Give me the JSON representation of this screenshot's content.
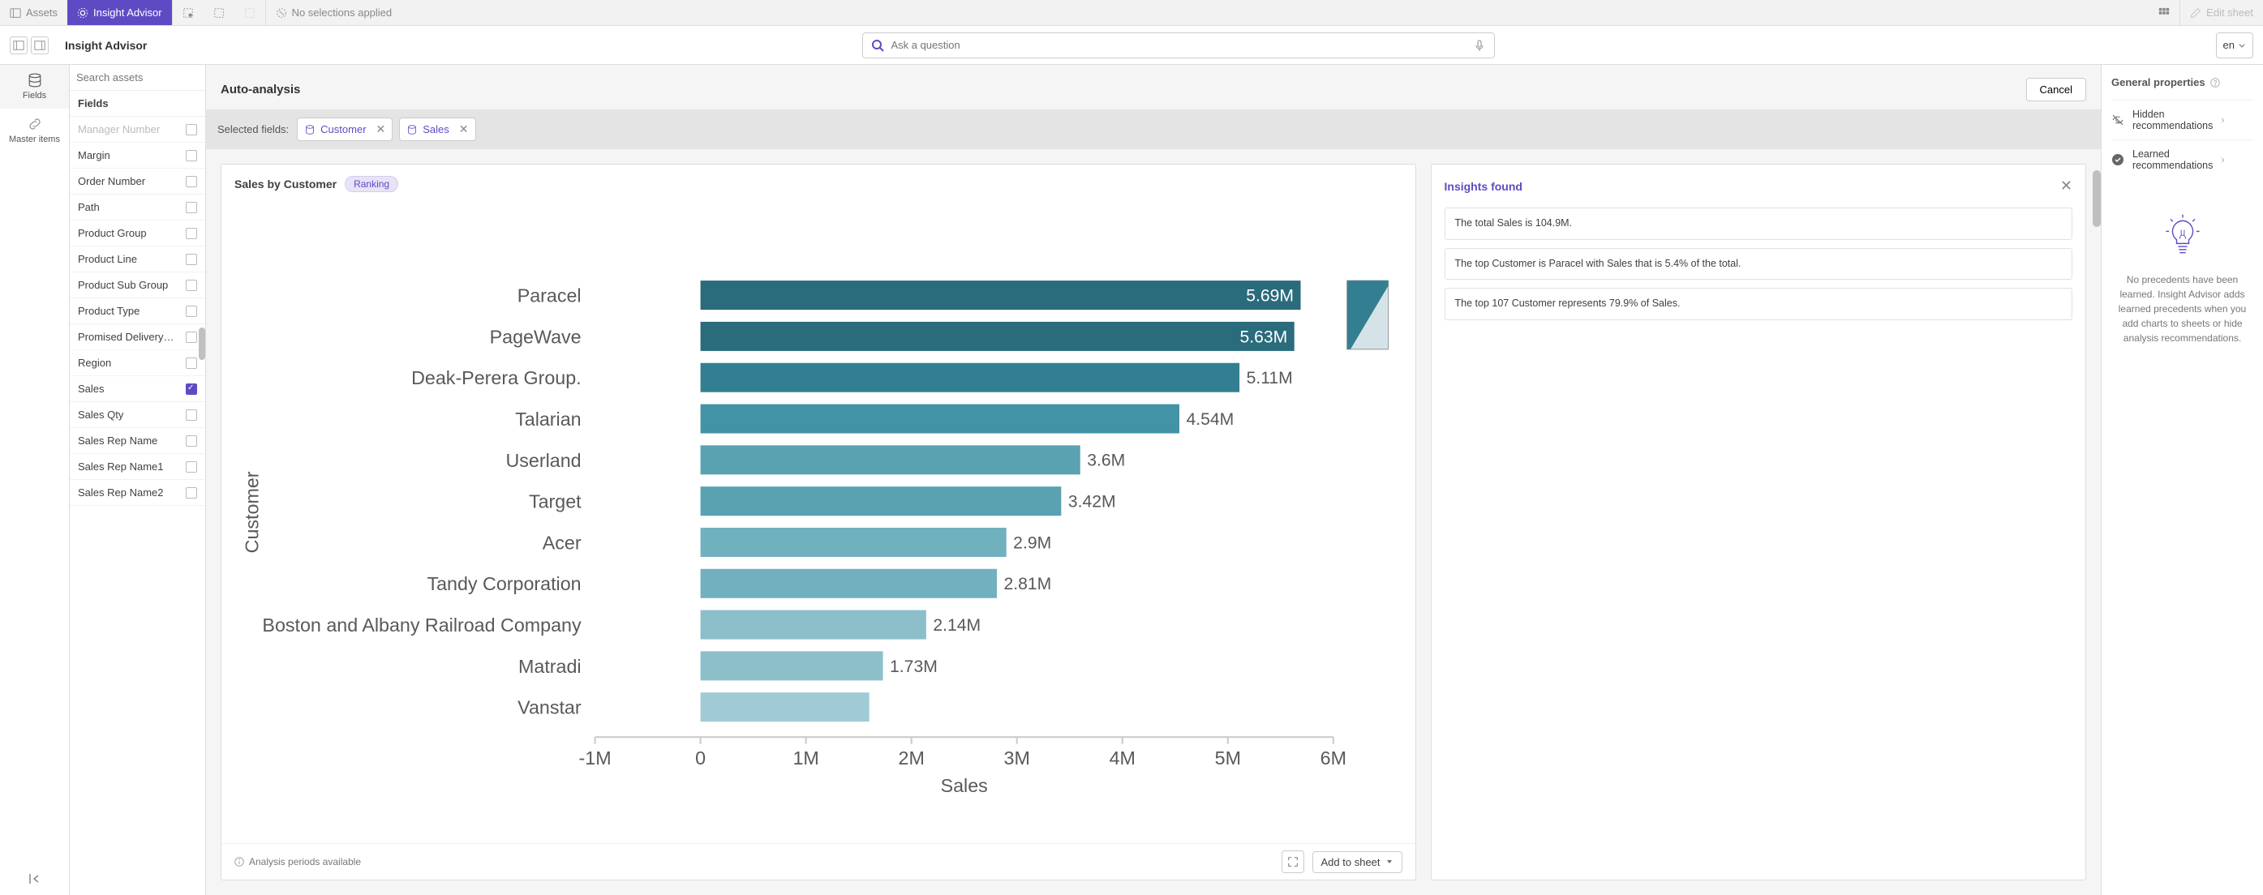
{
  "toolbar": {
    "assets": "Assets",
    "insight_advisor": "Insight Advisor",
    "no_selections": "No selections applied",
    "edit_sheet": "Edit sheet"
  },
  "sub": {
    "title": "Insight Advisor",
    "search_placeholder": "Ask a question",
    "lang": "en"
  },
  "rail": {
    "fields": "Fields",
    "master": "Master items"
  },
  "fields_panel": {
    "search_placeholder": "Search assets",
    "header": "Fields",
    "items": [
      {
        "label": "Manager Number",
        "checked": false
      },
      {
        "label": "Margin",
        "checked": false
      },
      {
        "label": "Order Number",
        "checked": false
      },
      {
        "label": "Path",
        "checked": false
      },
      {
        "label": "Product Group",
        "checked": false
      },
      {
        "label": "Product Line",
        "checked": false
      },
      {
        "label": "Product Sub Group",
        "checked": false
      },
      {
        "label": "Product Type",
        "checked": false
      },
      {
        "label": "Promised Delivery D...",
        "checked": false
      },
      {
        "label": "Region",
        "checked": false
      },
      {
        "label": "Sales",
        "checked": true
      },
      {
        "label": "Sales Qty",
        "checked": false
      },
      {
        "label": "Sales Rep Name",
        "checked": false
      },
      {
        "label": "Sales Rep Name1",
        "checked": false
      },
      {
        "label": "Sales Rep Name2",
        "checked": false
      }
    ]
  },
  "center": {
    "title": "Auto-analysis",
    "cancel": "Cancel",
    "selected_label": "Selected fields:",
    "chips": [
      {
        "label": "Customer"
      },
      {
        "label": "Sales"
      }
    ]
  },
  "chart": {
    "title": "Sales by Customer",
    "badge": "Ranking",
    "y_axis_label": "Customer",
    "x_axis_label": "Sales",
    "x_ticks": [
      "-1M",
      "0",
      "1M",
      "2M",
      "3M",
      "4M",
      "5M",
      "6M"
    ],
    "x_min": -1,
    "x_max": 6,
    "bars": [
      {
        "label": "Paracel",
        "value": 5.69,
        "text": "5.69M",
        "color": "#2a6b7c",
        "text_inside": true
      },
      {
        "label": "PageWave",
        "value": 5.63,
        "text": "5.63M",
        "color": "#2a6b7c",
        "text_inside": true
      },
      {
        "label": "Deak-Perera Group.",
        "value": 5.11,
        "text": "5.11M",
        "color": "#337f91",
        "text_inside": false
      },
      {
        "label": "Talarian",
        "value": 4.54,
        "text": "4.54M",
        "color": "#4293a6",
        "text_inside": false
      },
      {
        "label": "Userland",
        "value": 3.6,
        "text": "3.6M",
        "color": "#59a2b2",
        "text_inside": false
      },
      {
        "label": "Target",
        "value": 3.42,
        "text": "3.42M",
        "color": "#59a2b2",
        "text_inside": false
      },
      {
        "label": "Acer",
        "value": 2.9,
        "text": "2.9M",
        "color": "#71b0be",
        "text_inside": false
      },
      {
        "label": "Tandy Corporation",
        "value": 2.81,
        "text": "2.81M",
        "color": "#71b0be",
        "text_inside": false
      },
      {
        "label": "Boston and Albany Railroad Company",
        "value": 2.14,
        "text": "2.14M",
        "color": "#8cbfca",
        "text_inside": false
      },
      {
        "label": "Matradi",
        "value": 1.73,
        "text": "1.73M",
        "color": "#8cbfca",
        "text_inside": false
      },
      {
        "label": "Vanstar",
        "value": 1.6,
        "text": "",
        "color": "#a0cbd4",
        "text_inside": false
      }
    ],
    "footer_left": "Analysis periods available",
    "add_to_sheet": "Add to sheet"
  },
  "insights": {
    "title": "Insights found",
    "items": [
      "The total Sales is 104.9M.",
      "The top Customer is Paracel with Sales that is 5.4% of the total.",
      "The top 107 Customer represents 79.9% of Sales."
    ]
  },
  "right": {
    "title": "General properties",
    "hidden": "Hidden recommendations",
    "learned": "Learned recommendations",
    "empty": "No precedents have been learned. Insight Advisor adds learned precedents when you add charts to sheets or hide analysis recommendations."
  }
}
